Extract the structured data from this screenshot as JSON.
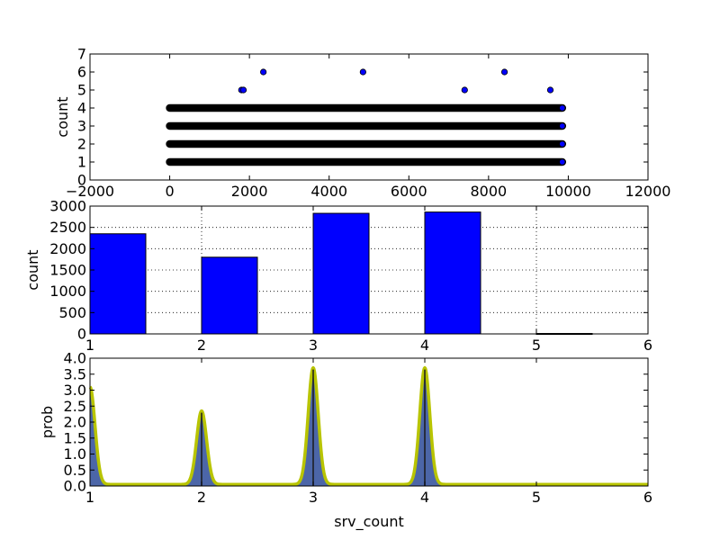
{
  "colors": {
    "scatter_fill": "#0000ff",
    "bar_fill": "#0000ff",
    "kde_fill": "#4c66a8",
    "kde_outline": "#b8c400",
    "kde_peak_line": "#1a1a1a",
    "grid": "#000000"
  },
  "chart_data": [
    {
      "type": "scatter",
      "title": "",
      "xlabel": "",
      "ylabel": "count",
      "xlim": [
        -2000,
        12000
      ],
      "ylim": [
        0,
        7
      ],
      "xticks": [
        "−2000",
        "0",
        "2000",
        "4000",
        "6000",
        "8000",
        "10000",
        "12000"
      ],
      "yticks": [
        "0",
        "1",
        "2",
        "3",
        "4",
        "5",
        "6",
        "7"
      ],
      "grid": false,
      "dense_bands": [
        {
          "y": 1,
          "x_start": 0,
          "x_end": 9850
        },
        {
          "y": 2,
          "x_start": 0,
          "x_end": 9850
        },
        {
          "y": 3,
          "x_start": 0,
          "x_end": 9850
        },
        {
          "y": 4,
          "x_start": 0,
          "x_end": 9850
        }
      ],
      "points": [
        {
          "x": 1800,
          "y": 5
        },
        {
          "x": 1850,
          "y": 5
        },
        {
          "x": 2350,
          "y": 6
        },
        {
          "x": 4850,
          "y": 6
        },
        {
          "x": 7400,
          "y": 5
        },
        {
          "x": 8400,
          "y": 6
        },
        {
          "x": 9550,
          "y": 5
        },
        {
          "x": 9850,
          "y": 1
        },
        {
          "x": 9850,
          "y": 2
        },
        {
          "x": 9850,
          "y": 3
        },
        {
          "x": 9850,
          "y": 4
        }
      ]
    },
    {
      "type": "bar",
      "title": "",
      "xlabel": "",
      "ylabel": "count",
      "xlim": [
        1,
        6
      ],
      "ylim": [
        0,
        3000
      ],
      "xticks": [
        "1",
        "2",
        "3",
        "4",
        "5",
        "6"
      ],
      "yticks": [
        "0",
        "500",
        "1000",
        "1500",
        "2000",
        "2500",
        "3000"
      ],
      "grid": true,
      "bar_width": 0.5,
      "bars": [
        {
          "x": 1,
          "value": 2350
        },
        {
          "x": 2,
          "value": 1800
        },
        {
          "x": 3,
          "value": 2830
        },
        {
          "x": 4,
          "value": 2860
        },
        {
          "x": 5,
          "value": 10
        }
      ]
    },
    {
      "type": "area",
      "title": "",
      "xlabel": "srv_count",
      "ylabel": "prob",
      "xlim": [
        1,
        6
      ],
      "ylim": [
        0,
        4.0
      ],
      "xticks": [
        "1",
        "2",
        "3",
        "4",
        "5",
        "6"
      ],
      "yticks": [
        "0.0",
        "0.5",
        "1.0",
        "1.5",
        "2.0",
        "2.5",
        "3.0",
        "3.5",
        "4.0"
      ],
      "grid": false,
      "baseline": 0.05,
      "peaks": [
        {
          "x": 1,
          "height": 3.1
        },
        {
          "x": 2,
          "height": 2.35
        },
        {
          "x": 3,
          "height": 3.7
        },
        {
          "x": 4,
          "height": 3.7
        }
      ]
    }
  ]
}
